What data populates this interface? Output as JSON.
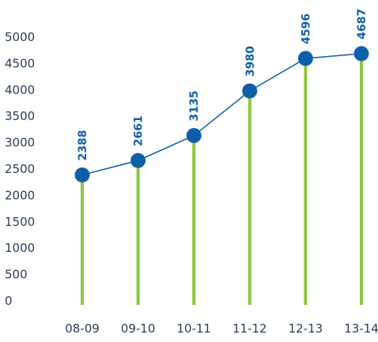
{
  "chart_data": {
    "type": "line",
    "categories": [
      "08-09",
      "09-10",
      "10-11",
      "11-12",
      "12-13",
      "13-14"
    ],
    "series": [
      {
        "values": [
          2388,
          2661,
          3135,
          3980,
          4596,
          4687
        ]
      }
    ],
    "data_labels": [
      "2388",
      "2661",
      "3135",
      "3980",
      "4596",
      "4687"
    ],
    "y_ticks": [
      "0",
      "500",
      "1000",
      "1500",
      "2000",
      "2500",
      "3000",
      "3500",
      "4000",
      "4500",
      "5000"
    ],
    "ylim": [
      0,
      5000
    ],
    "grid": false,
    "legend": "none",
    "colors": {
      "marker": "#0f5fa8",
      "line": "#0f5fa8",
      "stem": "#8dc63f",
      "data_label": "#0f5fa8",
      "tick": "#2b3d57"
    }
  }
}
